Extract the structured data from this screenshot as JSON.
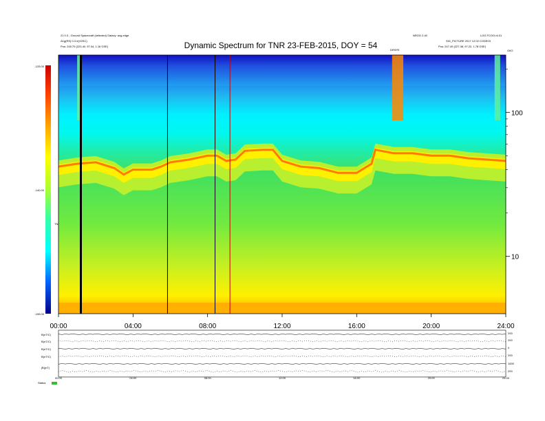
{
  "chart_data": {
    "type": "heatmap",
    "title": "Dynamic Spectrum for TNR 23-FEB-2015, DOY = 54",
    "header_left": [
      "21 0.3 - Ground Spacecraft (selected) Galaxy: avg-edge",
      "A1g(RS) 0.3 e(t:DSC)",
      "Pos: 245.70 (223.40, 97.04, 1.16 GSE)"
    ],
    "header_right_top": [
      "NROG 2.40",
      "LOG FCOO=6.01"
    ],
    "header_right": [
      "SIG_PICTURE 2017 12:02 CODE03",
      "Pos: 247.49 (227.38, 97.22, 1.78 GSE)"
    ],
    "event_label": "DRSFE",
    "right_top_label": "GIIO",
    "colorbar": {
      "label": "TNR",
      "ticks": [
        "-125.00",
        "-140.00",
        "-155.00"
      ]
    },
    "x_ticks": [
      "00:00",
      "04:00",
      "08:00",
      "12:00",
      "16:00",
      "20:00",
      "24:00"
    ],
    "y_ticks": [
      "100",
      "10"
    ],
    "xlim": [
      0,
      24
    ],
    "ylim": [
      4,
      250
    ],
    "yscale": "log",
    "vertical_lines": [
      {
        "hour": 1.2,
        "color": "#000000"
      },
      {
        "hour": 5.85,
        "color": "#000000"
      },
      {
        "hour": 8.4,
        "color": "#000000"
      },
      {
        "hour": 9.2,
        "color": "#cc0000"
      }
    ],
    "plasma_line": [
      [
        0,
        42
      ],
      [
        1,
        44
      ],
      [
        2,
        45
      ],
      [
        3,
        41
      ],
      [
        3.5,
        37
      ],
      [
        4,
        40
      ],
      [
        4.5,
        40
      ],
      [
        5,
        40
      ],
      [
        5.5,
        42
      ],
      [
        6,
        45
      ],
      [
        7,
        47
      ],
      [
        8,
        50
      ],
      [
        8.5,
        50
      ],
      [
        9,
        46
      ],
      [
        9.5,
        47
      ],
      [
        10,
        54
      ],
      [
        11,
        55
      ],
      [
        11.5,
        55
      ],
      [
        12,
        46
      ],
      [
        13,
        42
      ],
      [
        14,
        41
      ],
      [
        15,
        38
      ],
      [
        16,
        38
      ],
      [
        16.8,
        44
      ],
      [
        17,
        55
      ],
      [
        18,
        52
      ],
      [
        19,
        52
      ],
      [
        20,
        50
      ],
      [
        21,
        50
      ],
      [
        22,
        48
      ],
      [
        23,
        47
      ],
      [
        24,
        46
      ]
    ],
    "bursts": [
      {
        "start": 1.0,
        "end": 1.2
      },
      {
        "start": 17.9,
        "end": 18.5
      },
      {
        "start": 23.4,
        "end": 23.7
      }
    ]
  },
  "bottom_panel": {
    "labels": [
      "B(nT/C)",
      "B(nT/C)",
      "B(nT/C)",
      "B(nT/C)",
      "|B|(nT)"
    ],
    "right_ticks": [
      "200",
      "200",
      "0",
      "200",
      "1000",
      "200"
    ],
    "x_ticks": [
      "00:00",
      "04:00",
      "08:00",
      "12:00",
      "16:00",
      "20:00",
      "24:00"
    ],
    "status": "Status"
  }
}
